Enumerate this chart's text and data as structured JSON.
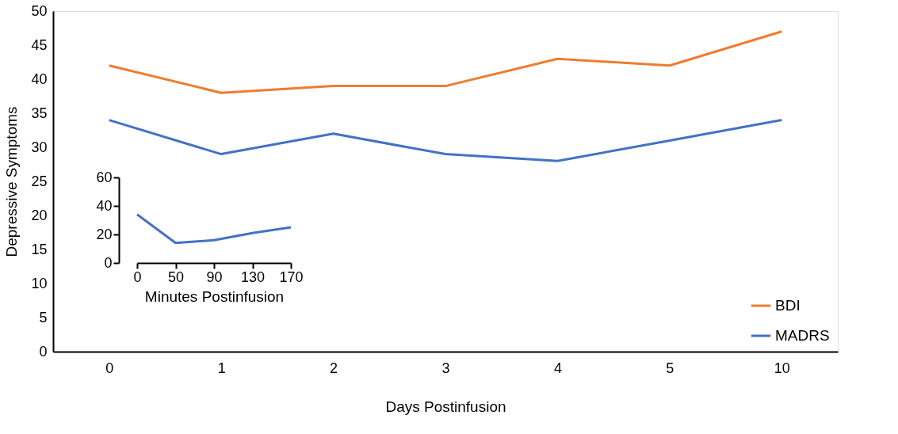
{
  "chart_data": [
    {
      "type": "line",
      "xlabel": "Days Postinfusion",
      "ylabel": "Depressive Symptoms",
      "categories": [
        "0",
        "1",
        "2",
        "3",
        "4",
        "5",
        "10"
      ],
      "ylim": [
        0,
        50
      ],
      "yticks": [
        0,
        5,
        10,
        15,
        20,
        25,
        30,
        35,
        40,
        45,
        50
      ],
      "legend": "bottom right",
      "series": [
        {
          "name": "BDI",
          "color": "#ed7d31",
          "values": [
            42,
            38,
            39,
            39,
            43,
            42,
            47
          ]
        },
        {
          "name": "MADRS",
          "color": "#4472c4",
          "values": [
            34,
            29,
            32,
            29,
            28,
            31,
            34
          ]
        }
      ]
    },
    {
      "type": "line",
      "xlabel": "Minutes Postinfusion",
      "categories": [
        "0",
        "50",
        "90",
        "130",
        "170"
      ],
      "ylim": [
        0,
        60
      ],
      "yticks": [
        0,
        20,
        40,
        60
      ],
      "series": [
        {
          "color": "#4472c4",
          "values": [
            34,
            14,
            16,
            21,
            25
          ]
        }
      ]
    }
  ]
}
